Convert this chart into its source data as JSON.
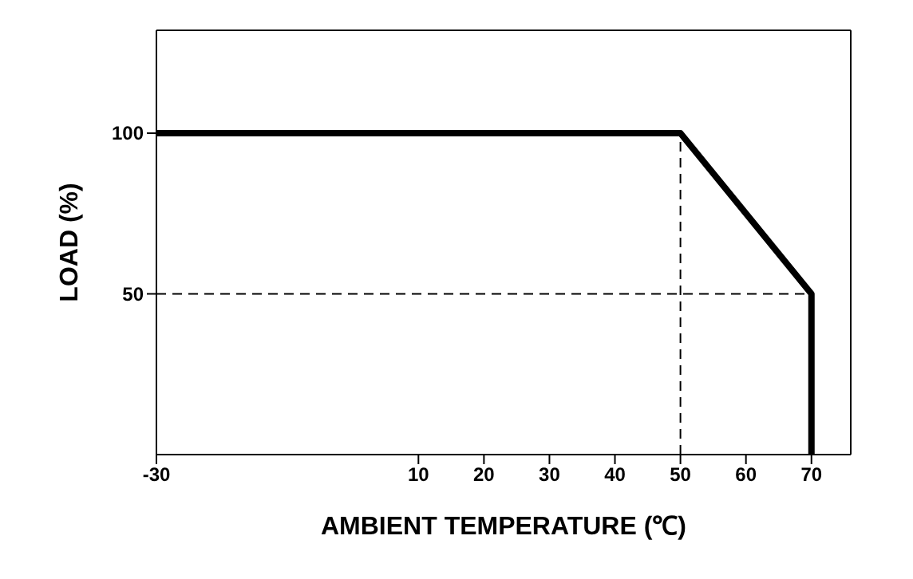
{
  "chart_data": {
    "type": "line",
    "xlabel": "AMBIENT TEMPERATURE (℃)",
    "ylabel": "LOAD (%)",
    "xlim": [
      -30,
      76
    ],
    "xticks": [
      -30,
      10,
      20,
      30,
      40,
      50,
      60,
      70
    ],
    "ylim": [
      0,
      132
    ],
    "yticks": [
      50,
      100
    ],
    "legend": false,
    "marker": "none",
    "series": [
      {
        "color": "#000000",
        "x": [
          -30,
          50,
          70,
          70
        ],
        "values": [
          100,
          100,
          50,
          0
        ],
        "line_style": "solid"
      },
      {
        "color": "#000000",
        "x": [
          50,
          50
        ],
        "values": [
          0,
          100
        ],
        "line_style": "dashed"
      },
      {
        "color": "#000000",
        "x": [
          -30,
          70
        ],
        "values": [
          50,
          50
        ],
        "line_style": "dashed"
      }
    ]
  }
}
